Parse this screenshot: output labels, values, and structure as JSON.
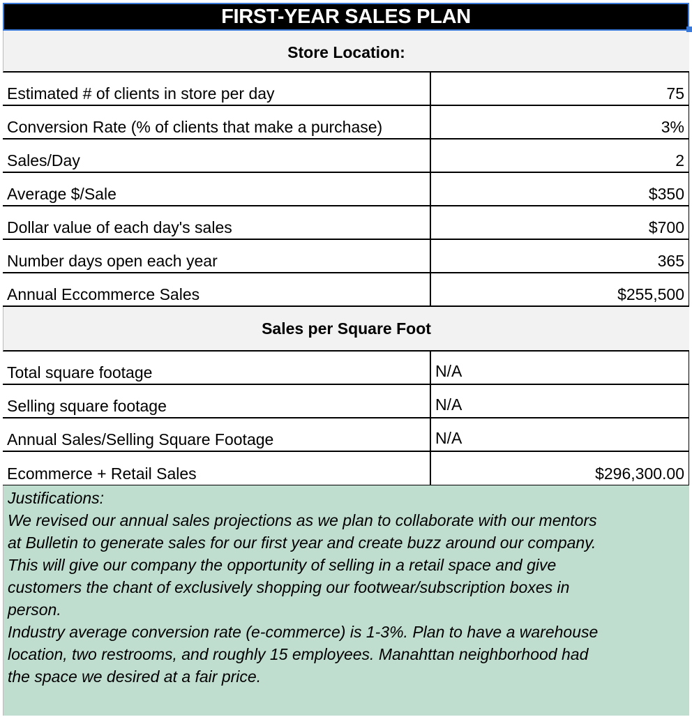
{
  "title": "FIRST-YEAR SALES PLAN",
  "section1": "Store Location:",
  "rows1": [
    {
      "label": "Estimated # of clients in store per day",
      "value": "75"
    },
    {
      "label": "Conversion Rate (% of clients that make a purchase)",
      "value": "3%"
    },
    {
      "label": "Sales/Day",
      "value": "2"
    },
    {
      "label": "Average $/Sale",
      "value": "$350"
    },
    {
      "label": "Dollar value of each day's sales",
      "value": "$700"
    },
    {
      "label": "Number days open each year",
      "value": "365"
    },
    {
      "label": "Annual Eccommerce Sales",
      "value": "$255,500"
    }
  ],
  "section2": "Sales per Square Foot",
  "rows2": [
    {
      "label": "Total square footage",
      "value": "N/A"
    },
    {
      "label": "Selling square footage",
      "value": "N/A"
    },
    {
      "label": "Annual Sales/Selling Square Footage",
      "value": "N/A"
    },
    {
      "label": "Ecommerce + Retail Sales",
      "value": "$296,300.00"
    }
  ],
  "justification_lines": [
    "Justifications:",
    "We revised our annual sales projections as we plan to collaborate with our mentors",
    "at Bulletin to generate sales for our first year and create buzz around our company.",
    "This will give our company the opportunity of selling in a retail space and give",
    "customers the chant of exclusively shopping our footwear/subscription boxes in",
    "person.",
    "Industry average conversion rate (e-commerce) is 1-3%. Plan to have a warehouse",
    "location, two restrooms, and roughly 15 employees. Manahttan neighborhood had",
    "the space we desired at a fair price."
  ],
  "colors": {
    "selection": "#3a78d8",
    "header_bg": "#f2f2f2",
    "justification_bg": "#bfded0"
  }
}
